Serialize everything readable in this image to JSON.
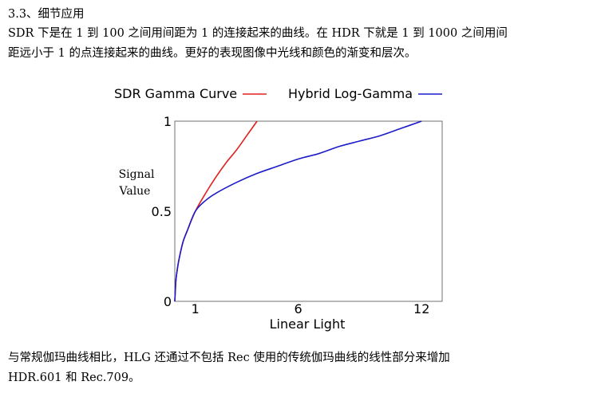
{
  "section": {
    "heading": "3.3、细节应用"
  },
  "paragraphs": {
    "intro_line1": "SDR 下是在 1 到 100 之间用间距为 1 的连接起来的曲线。在 HDR 下就是 1 到 1000 之间用间",
    "intro_line2": "距远小于 1 的点连接起来的曲线。更好的表现图像中光线和颜色的渐变和层次。",
    "outro_line1": "与常规伽玛曲线相比，HLG 还通过不包括 Rec 使用的传统伽玛曲线的线性部分来增加",
    "outro_line2": "HDR.601 和 Rec.709。"
  },
  "chart_data": {
    "type": "line",
    "title": "",
    "xlabel": "Linear Light",
    "ylabel": "Signal Value",
    "xlim": [
      0,
      13
    ],
    "ylim": [
      0,
      1
    ],
    "x_ticks": [
      "1",
      "6",
      "12"
    ],
    "y_ticks": [
      "0",
      "0.5",
      "1"
    ],
    "legend_position": "top",
    "grid": false,
    "series": [
      {
        "name": "SDR Gamma Curve",
        "color": "#e02020",
        "x": [
          0,
          0.05,
          0.1,
          0.2,
          0.4,
          0.6,
          1,
          1.5,
          2,
          2.5,
          3,
          3.5,
          4
        ],
        "y": [
          0,
          0.11,
          0.16,
          0.23,
          0.33,
          0.39,
          0.5,
          0.6,
          0.69,
          0.77,
          0.84,
          0.92,
          1.0
        ]
      },
      {
        "name": "Hybrid Log-Gamma",
        "color": "#1c1cc8",
        "x": [
          0,
          0.05,
          0.1,
          0.2,
          0.4,
          0.6,
          1,
          1.5,
          2,
          3,
          4,
          5,
          6,
          7,
          8,
          9,
          10,
          11,
          12
        ],
        "y": [
          0,
          0.11,
          0.16,
          0.23,
          0.33,
          0.39,
          0.5,
          0.56,
          0.6,
          0.66,
          0.71,
          0.75,
          0.79,
          0.82,
          0.86,
          0.89,
          0.92,
          0.96,
          1.0
        ]
      }
    ]
  }
}
